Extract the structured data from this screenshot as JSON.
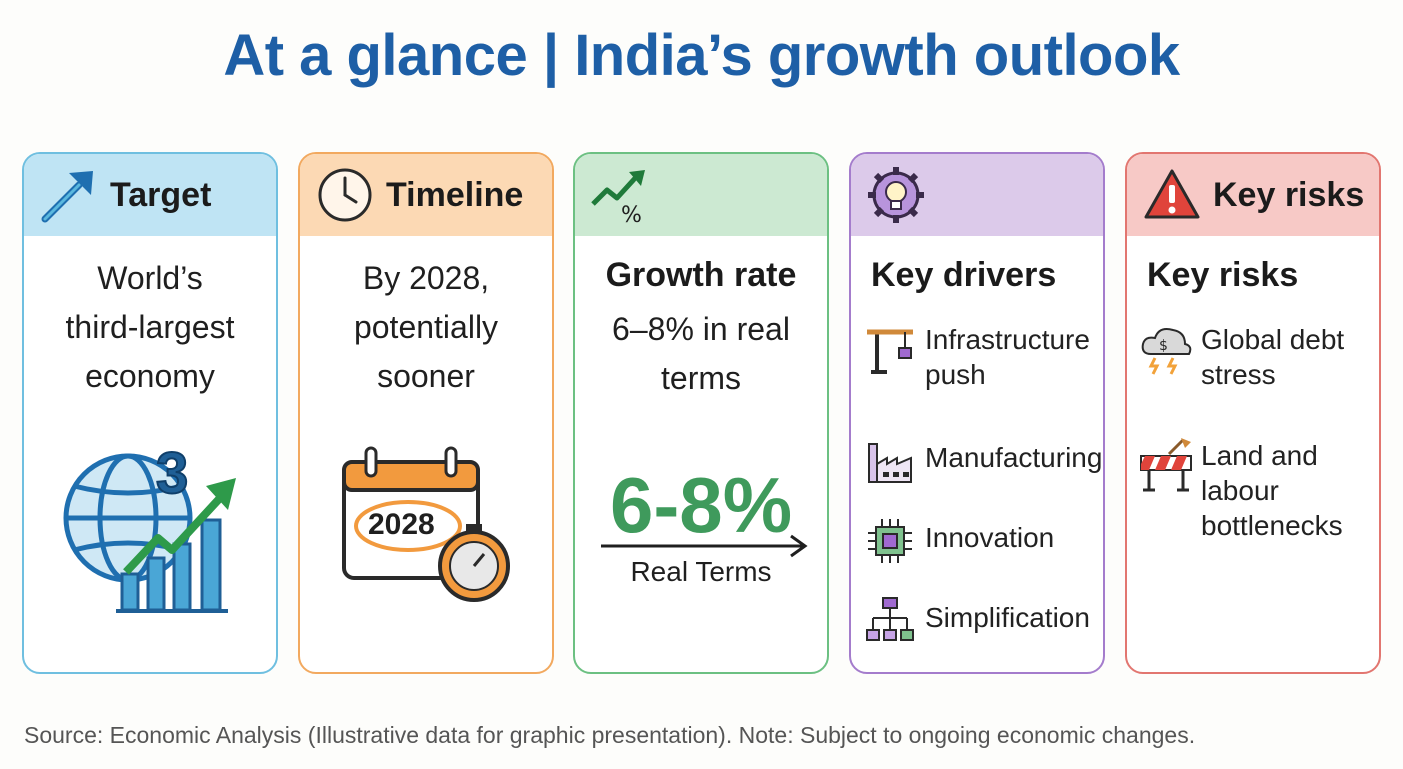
{
  "title": "At a glance | India’s growth outlook",
  "cards": {
    "target": {
      "header": "Target",
      "text_lines": [
        "World’s",
        "third-largest",
        "economy"
      ],
      "badge": "3",
      "color": "#5bb8de",
      "head_bg": "#bfe4f4",
      "icon": "arrow-up-right-icon"
    },
    "timeline": {
      "header": "Timeline",
      "text_lines": [
        "By 2028,",
        "potentially",
        "sooner"
      ],
      "calendar_year": "2028",
      "color": "#f0a35a",
      "head_bg": "#fcd9b4",
      "icon": "clock-icon"
    },
    "growth": {
      "subtitle": "Growth rate",
      "text_lines": [
        "6–8% in real",
        "terms"
      ],
      "big_value": "6-8%",
      "caption": "Real Terms",
      "color": "#5fb878",
      "head_bg": "#cce9d2",
      "icon": "growth-percent-icon"
    },
    "drivers": {
      "subtitle": "Key drivers",
      "items": [
        {
          "label_lines": [
            "Infrastructure",
            "push"
          ],
          "icon": "crane-icon"
        },
        {
          "label_lines": [
            "Manufacturing"
          ],
          "icon": "factory-icon"
        },
        {
          "label_lines": [
            "Innovation"
          ],
          "icon": "chip-icon"
        },
        {
          "label_lines": [
            "Simplification"
          ],
          "icon": "flowchart-icon"
        }
      ],
      "color": "#9c6cc4",
      "head_bg": "#dccaea",
      "icon": "gear-bulb-icon"
    },
    "risks": {
      "header": "Key risks",
      "subtitle": "Key risks",
      "items": [
        {
          "label_lines": [
            "Global debt",
            "stress"
          ],
          "icon": "storm-cloud-icon"
        },
        {
          "label_lines": [
            "Land and",
            "labour",
            "bottlenecks"
          ],
          "icon": "roadblock-icon"
        }
      ],
      "color": "#e06a64",
      "head_bg": "#f7c9c6",
      "icon": "warning-icon"
    }
  },
  "source": "Source: Economic Analysis (Illustrative data for graphic presentation). Note: Subject to ongoing economic changes."
}
